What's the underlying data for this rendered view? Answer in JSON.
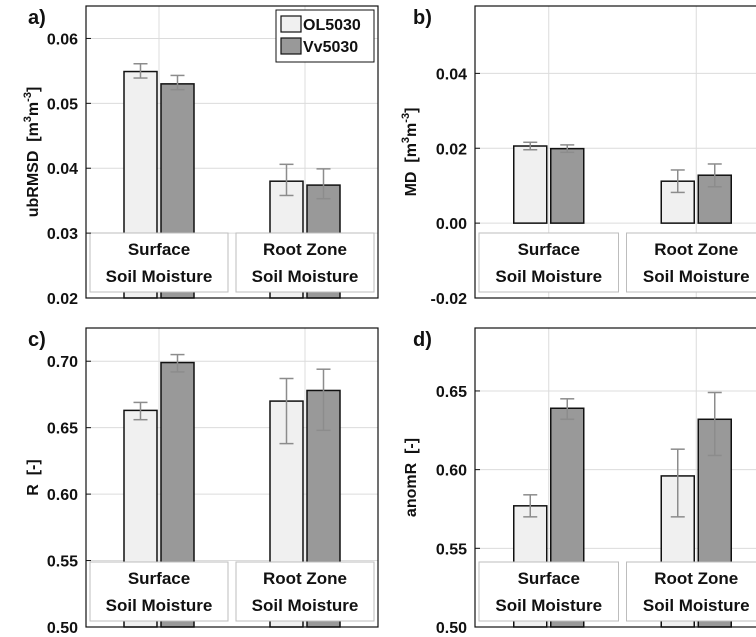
{
  "chart_data": [
    {
      "type": "bar",
      "panel_label": "a)",
      "ylabel": "ubRMSD",
      "ylabel_unit_base": "m",
      "ylabel_unit_exp1": "3",
      "ylabel_unit_exp2": "-3",
      "ylim": [
        0.02,
        0.065
      ],
      "yticks": [
        "0.02",
        "0.03",
        "0.04",
        "0.05",
        "0.06"
      ],
      "yticks_values": [
        0.02,
        0.03,
        0.04,
        0.05,
        0.06
      ],
      "categories": [
        "Surface Soil Moisture",
        "Root Zone Soil Moisture"
      ],
      "category_lines": [
        [
          "Surface",
          "Soil Moisture"
        ],
        [
          "Root Zone",
          "Soil Moisture"
        ]
      ],
      "series": [
        {
          "name": "OL5030",
          "values": [
            0.0549,
            0.038
          ],
          "err_low": [
            0.0539,
            0.0358
          ],
          "err_high": [
            0.0561,
            0.0406
          ]
        },
        {
          "name": "Vv5030",
          "values": [
            0.053,
            0.0374
          ],
          "err_low": [
            0.0521,
            0.0353
          ],
          "err_high": [
            0.0543,
            0.0399
          ]
        }
      ],
      "grid": true,
      "legend": "top-right"
    },
    {
      "type": "bar",
      "panel_label": "b)",
      "ylabel": "MD",
      "ylabel_unit_base": "m",
      "ylabel_unit_exp1": "3",
      "ylabel_unit_exp2": "-3",
      "ylim": [
        -0.02,
        0.058
      ],
      "yticks": [
        "-0.02",
        "0.00",
        "0.02",
        "0.04"
      ],
      "yticks_values": [
        -0.02,
        0.0,
        0.02,
        0.04
      ],
      "categories": [
        "Surface Soil Moisture",
        "Root Zone Soil Moisture"
      ],
      "category_lines": [
        [
          "Surface",
          "Soil Moisture"
        ],
        [
          "Root Zone",
          "Soil Moisture"
        ]
      ],
      "series": [
        {
          "name": "OL5030",
          "values": [
            0.0206,
            0.0112
          ],
          "err_low": [
            0.0196,
            0.0082
          ],
          "err_high": [
            0.0216,
            0.0142
          ]
        },
        {
          "name": "Vv5030",
          "values": [
            0.0199,
            0.0128
          ],
          "err_low": [
            0.0189,
            0.0097
          ],
          "err_high": [
            0.0209,
            0.0158
          ]
        }
      ],
      "grid": true
    },
    {
      "type": "bar",
      "panel_label": "c)",
      "ylabel": "R",
      "ylabel_unit_text": "[-]",
      "ylim": [
        0.5,
        0.725
      ],
      "yticks": [
        "0.50",
        "0.55",
        "0.60",
        "0.65",
        "0.70"
      ],
      "yticks_values": [
        0.5,
        0.55,
        0.6,
        0.65,
        0.7
      ],
      "categories": [
        "Surface Soil Moisture",
        "Root Zone Soil Moisture"
      ],
      "category_lines": [
        [
          "Surface",
          "Soil Moisture"
        ],
        [
          "Root Zone",
          "Soil Moisture"
        ]
      ],
      "series": [
        {
          "name": "OL5030",
          "values": [
            0.663,
            0.67
          ],
          "err_low": [
            0.656,
            0.638
          ],
          "err_high": [
            0.669,
            0.687
          ]
        },
        {
          "name": "Vv5030",
          "values": [
            0.699,
            0.678
          ],
          "err_low": [
            0.692,
            0.648
          ],
          "err_high": [
            0.705,
            0.694
          ]
        }
      ],
      "grid": true
    },
    {
      "type": "bar",
      "panel_label": "d)",
      "ylabel": "anomR",
      "ylabel_unit_text": "[-]",
      "ylim": [
        0.5,
        0.69
      ],
      "yticks": [
        "0.50",
        "0.55",
        "0.60",
        "0.65"
      ],
      "yticks_values": [
        0.5,
        0.55,
        0.6,
        0.65
      ],
      "categories": [
        "Surface Soil Moisture",
        "Root Zone Soil Moisture"
      ],
      "category_lines": [
        [
          "Surface",
          "Soil Moisture"
        ],
        [
          "Root Zone",
          "Soil Moisture"
        ]
      ],
      "series": [
        {
          "name": "OL5030",
          "values": [
            0.577,
            0.596
          ],
          "err_low": [
            0.57,
            0.57
          ],
          "err_high": [
            0.584,
            0.613
          ]
        },
        {
          "name": "Vv5030",
          "values": [
            0.639,
            0.632
          ],
          "err_low": [
            0.632,
            0.609
          ],
          "err_high": [
            0.645,
            0.649
          ]
        }
      ],
      "grid": true
    }
  ],
  "colors": {
    "OL5030": "#f0f0f0",
    "Vv5030": "#999999",
    "bar_edge": "#111111",
    "error_bar": "#8c8c8c",
    "grid": "#dcdcdc",
    "axes": "#111111",
    "category_box_edge": "#bdbdbd"
  }
}
